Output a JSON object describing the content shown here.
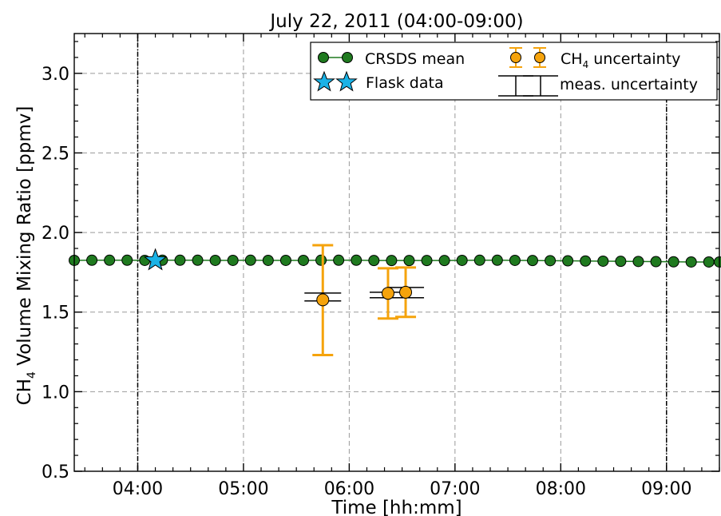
{
  "chart_data": {
    "type": "scatter",
    "title": "July 22, 2011 (04:00-09:00)",
    "xlabel": "Time [hh:mm]",
    "ylabel_prefix": "CH",
    "ylabel_sub": "4",
    "ylabel_suffix": " Volume Mixing Ratio [ppmv]",
    "xlim": [
      "03:24",
      "09:30"
    ],
    "ylim": [
      0.5,
      3.25
    ],
    "x_ticks": [
      "04:00",
      "05:00",
      "06:00",
      "07:00",
      "08:00",
      "09:00"
    ],
    "y_ticks": [
      "0.5",
      "1.0",
      "1.5",
      "2.0",
      "2.5",
      "3.0"
    ],
    "grid": true,
    "vertical_markers": [
      "04:00",
      "09:00"
    ],
    "legend": {
      "placement": "top-right",
      "entries": [
        {
          "label": "CRSDS mean",
          "marker": "circle-line"
        },
        {
          "label": "CH",
          "label_sub": "4",
          "label_suffix": " uncertainty",
          "marker": "errorbar-circle"
        },
        {
          "label": "Flask data",
          "marker": "star"
        },
        {
          "label": "meas. uncertainty",
          "marker": "black-errorbar"
        }
      ]
    },
    "series": [
      {
        "name": "CRSDS mean",
        "color": "#1f7a1f",
        "x": [
          "03:24",
          "03:34",
          "03:44",
          "03:54",
          "04:04",
          "04:14",
          "04:24",
          "04:34",
          "04:44",
          "04:54",
          "05:04",
          "05:14",
          "05:24",
          "05:34",
          "05:44",
          "05:54",
          "06:04",
          "06:14",
          "06:24",
          "06:34",
          "06:44",
          "06:54",
          "07:04",
          "07:14",
          "07:24",
          "07:34",
          "07:44",
          "07:54",
          "08:04",
          "08:14",
          "08:24",
          "08:34",
          "08:44",
          "08:54",
          "09:04",
          "09:14",
          "09:24",
          "09:30"
        ],
        "y": [
          1.825,
          1.826,
          1.826,
          1.826,
          1.825,
          1.826,
          1.826,
          1.826,
          1.825,
          1.825,
          1.826,
          1.825,
          1.825,
          1.825,
          1.826,
          1.826,
          1.826,
          1.824,
          1.824,
          1.824,
          1.824,
          1.824,
          1.825,
          1.826,
          1.826,
          1.825,
          1.824,
          1.823,
          1.822,
          1.821,
          1.82,
          1.819,
          1.818,
          1.817,
          1.816,
          1.815,
          1.815,
          1.815
        ]
      },
      {
        "name": "Flask data",
        "color": "#1ab2e6",
        "x": [
          "04:10"
        ],
        "y": [
          1.825
        ]
      },
      {
        "name": "CH4 uncertainty",
        "color": "#f5a30c",
        "x": [
          "05:45",
          "06:22",
          "06:32"
        ],
        "y": [
          1.577,
          1.618,
          1.625
        ],
        "err_low": [
          1.23,
          1.46,
          1.47
        ],
        "err_high": [
          1.92,
          1.775,
          1.78
        ]
      },
      {
        "name": "meas. uncertainty",
        "color": "#000000",
        "x": [
          "05:45",
          "06:22",
          "06:32"
        ],
        "err_low": [
          1.57,
          1.59,
          1.59
        ],
        "err_high": [
          1.62,
          1.625,
          1.655
        ]
      }
    ]
  }
}
